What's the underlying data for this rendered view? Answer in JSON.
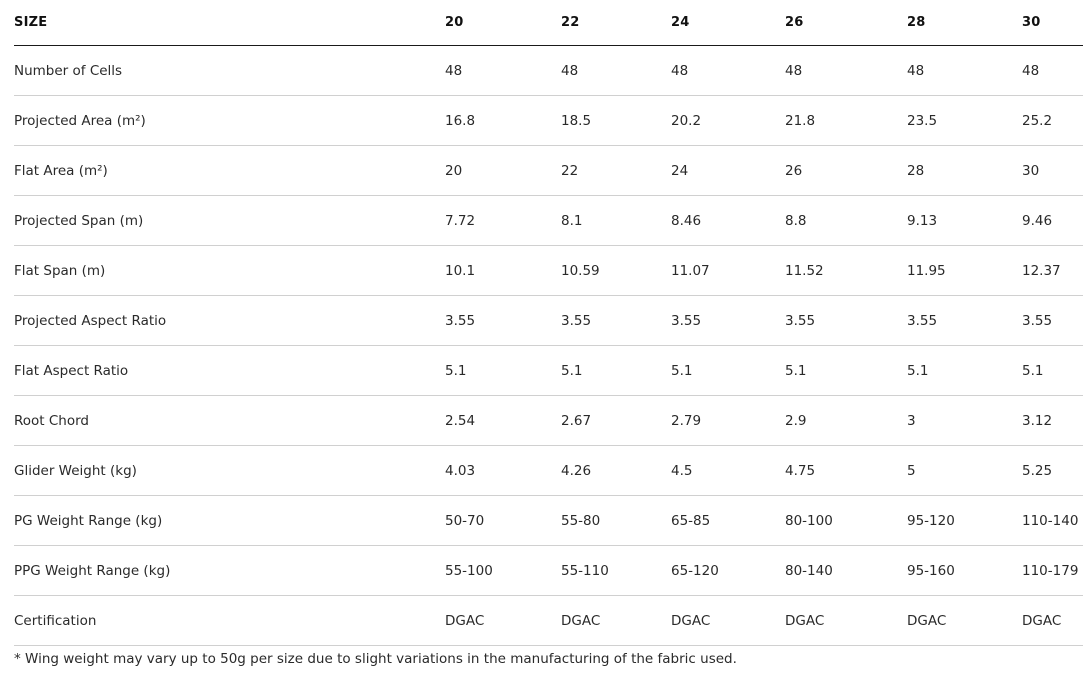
{
  "table": {
    "header": [
      "SIZE",
      "20",
      "22",
      "24",
      "26",
      "28",
      "30"
    ],
    "rows": [
      [
        "Number of Cells",
        "48",
        "48",
        "48",
        "48",
        "48",
        "48"
      ],
      [
        "Projected Area (m²)",
        "16.8",
        "18.5",
        "20.2",
        "21.8",
        "23.5",
        "25.2"
      ],
      [
        "Flat Area (m²)",
        "20",
        "22",
        "24",
        "26",
        "28",
        "30"
      ],
      [
        "Projected Span (m)",
        "7.72",
        "8.1",
        "8.46",
        "8.8",
        "9.13",
        "9.46"
      ],
      [
        "Flat Span (m)",
        "10.1",
        "10.59",
        "11.07",
        "11.52",
        "11.95",
        "12.37"
      ],
      [
        "Projected Aspect Ratio",
        "3.55",
        "3.55",
        "3.55",
        "3.55",
        "3.55",
        "3.55"
      ],
      [
        "Flat Aspect Ratio",
        "5.1",
        "5.1",
        "5.1",
        "5.1",
        "5.1",
        "5.1"
      ],
      [
        "Root Chord",
        "2.54",
        "2.67",
        "2.79",
        "2.9",
        "3",
        "3.12"
      ],
      [
        "Glider Weight (kg)",
        "4.03",
        "4.26",
        "4.5",
        "4.75",
        "5",
        "5.25"
      ],
      [
        "PG Weight Range (kg)",
        "50-70",
        "55-80",
        "65-85",
        "80-100",
        "95-120",
        "110-140"
      ],
      [
        "PPG Weight Range (kg)",
        "55-100",
        "55-110",
        "65-120",
        "80-140",
        "95-160",
        "110-179"
      ],
      [
        "Certification",
        "DGAC",
        "DGAC",
        "DGAC",
        "DGAC",
        "DGAC",
        "DGAC"
      ]
    ]
  },
  "footnote": "* Wing weight may vary up to 50g per size due to slight variations in the manufacturing of the fabric used."
}
